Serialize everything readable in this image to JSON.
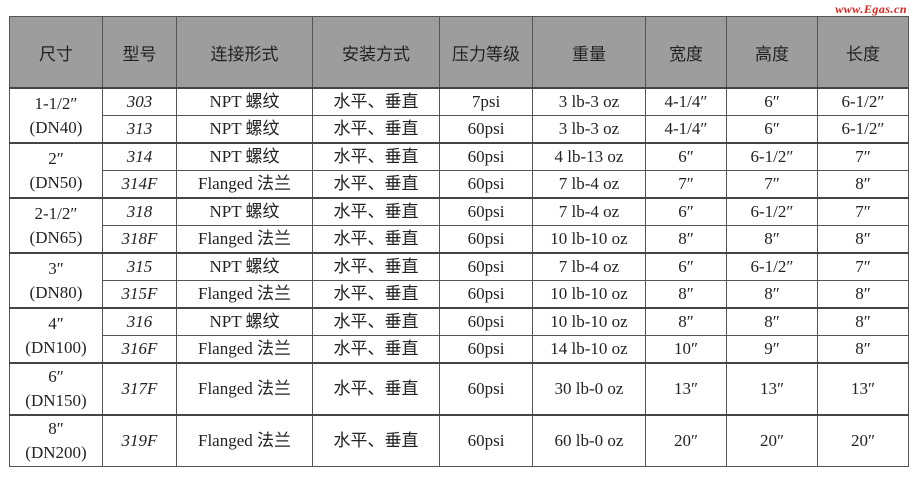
{
  "watermark": "www.Egas.cn",
  "headers": [
    "尺寸",
    "型号",
    "连接形式",
    "安装方式",
    "压力等级",
    "重量",
    "宽度",
    "高度",
    "长度"
  ],
  "groups": [
    {
      "size": "1-1/2″",
      "dn": "(DN40)",
      "rows": [
        [
          "303",
          "NPT  螺纹",
          "水平、垂直",
          "7psi",
          "3 lb-3 oz",
          "4-1/4″",
          "6″",
          "6-1/2″"
        ],
        [
          "313",
          "NPT  螺纹",
          "水平、垂直",
          "60psi",
          "3 lb-3 oz",
          "4-1/4″",
          "6″",
          "6-1/2″"
        ]
      ]
    },
    {
      "size": "2″",
      "dn": "(DN50)",
      "rows": [
        [
          "314",
          "NPT  螺纹",
          "水平、垂直",
          "60psi",
          "4 lb-13 oz",
          "6″",
          "6-1/2″",
          "7″"
        ],
        [
          "314F",
          "Flanged  法兰",
          "水平、垂直",
          "60psi",
          "7 lb-4 oz",
          "7″",
          "7″",
          "8″"
        ]
      ]
    },
    {
      "size": "2-1/2″",
      "dn": "(DN65)",
      "rows": [
        [
          "318",
          "NPT  螺纹",
          "水平、垂直",
          "60psi",
          "7 lb-4 oz",
          "6″",
          "6-1/2″",
          "7″"
        ],
        [
          "318F",
          "Flanged  法兰",
          "水平、垂直",
          "60psi",
          "10 lb-10 oz",
          "8″",
          "8″",
          "8″"
        ]
      ]
    },
    {
      "size": "3″",
      "dn": "(DN80)",
      "rows": [
        [
          "315",
          "NPT  螺纹",
          "水平、垂直",
          "60psi",
          "7 lb-4 oz",
          "6″",
          "6-1/2″",
          "7″"
        ],
        [
          "315F",
          "Flanged  法兰",
          "水平、垂直",
          "60psi",
          "10 lb-10 oz",
          "8″",
          "8″",
          "8″"
        ]
      ]
    },
    {
      "size": "4″",
      "dn": "(DN100)",
      "rows": [
        [
          "316",
          "NPT  螺纹",
          "水平、垂直",
          "60psi",
          "10 lb-10 oz",
          "8″",
          "8″",
          "8″"
        ],
        [
          "316F",
          "Flanged  法兰",
          "水平、垂直",
          "60psi",
          "14 lb-10 oz",
          "10″",
          "9″",
          "8″"
        ]
      ]
    },
    {
      "size": "6″",
      "dn": "(DN150)",
      "rows": [
        [
          "317F",
          "Flanged  法兰",
          "水平、垂直",
          "60psi",
          "30 lb-0 oz",
          "13″",
          "13″",
          "13″"
        ]
      ]
    },
    {
      "size": "8″",
      "dn": "(DN200)",
      "rows": [
        [
          "319F",
          "Flanged  法兰",
          "水平、垂直",
          "60psi",
          "60 lb-0 oz",
          "20″",
          "20″",
          "20″"
        ]
      ]
    }
  ]
}
